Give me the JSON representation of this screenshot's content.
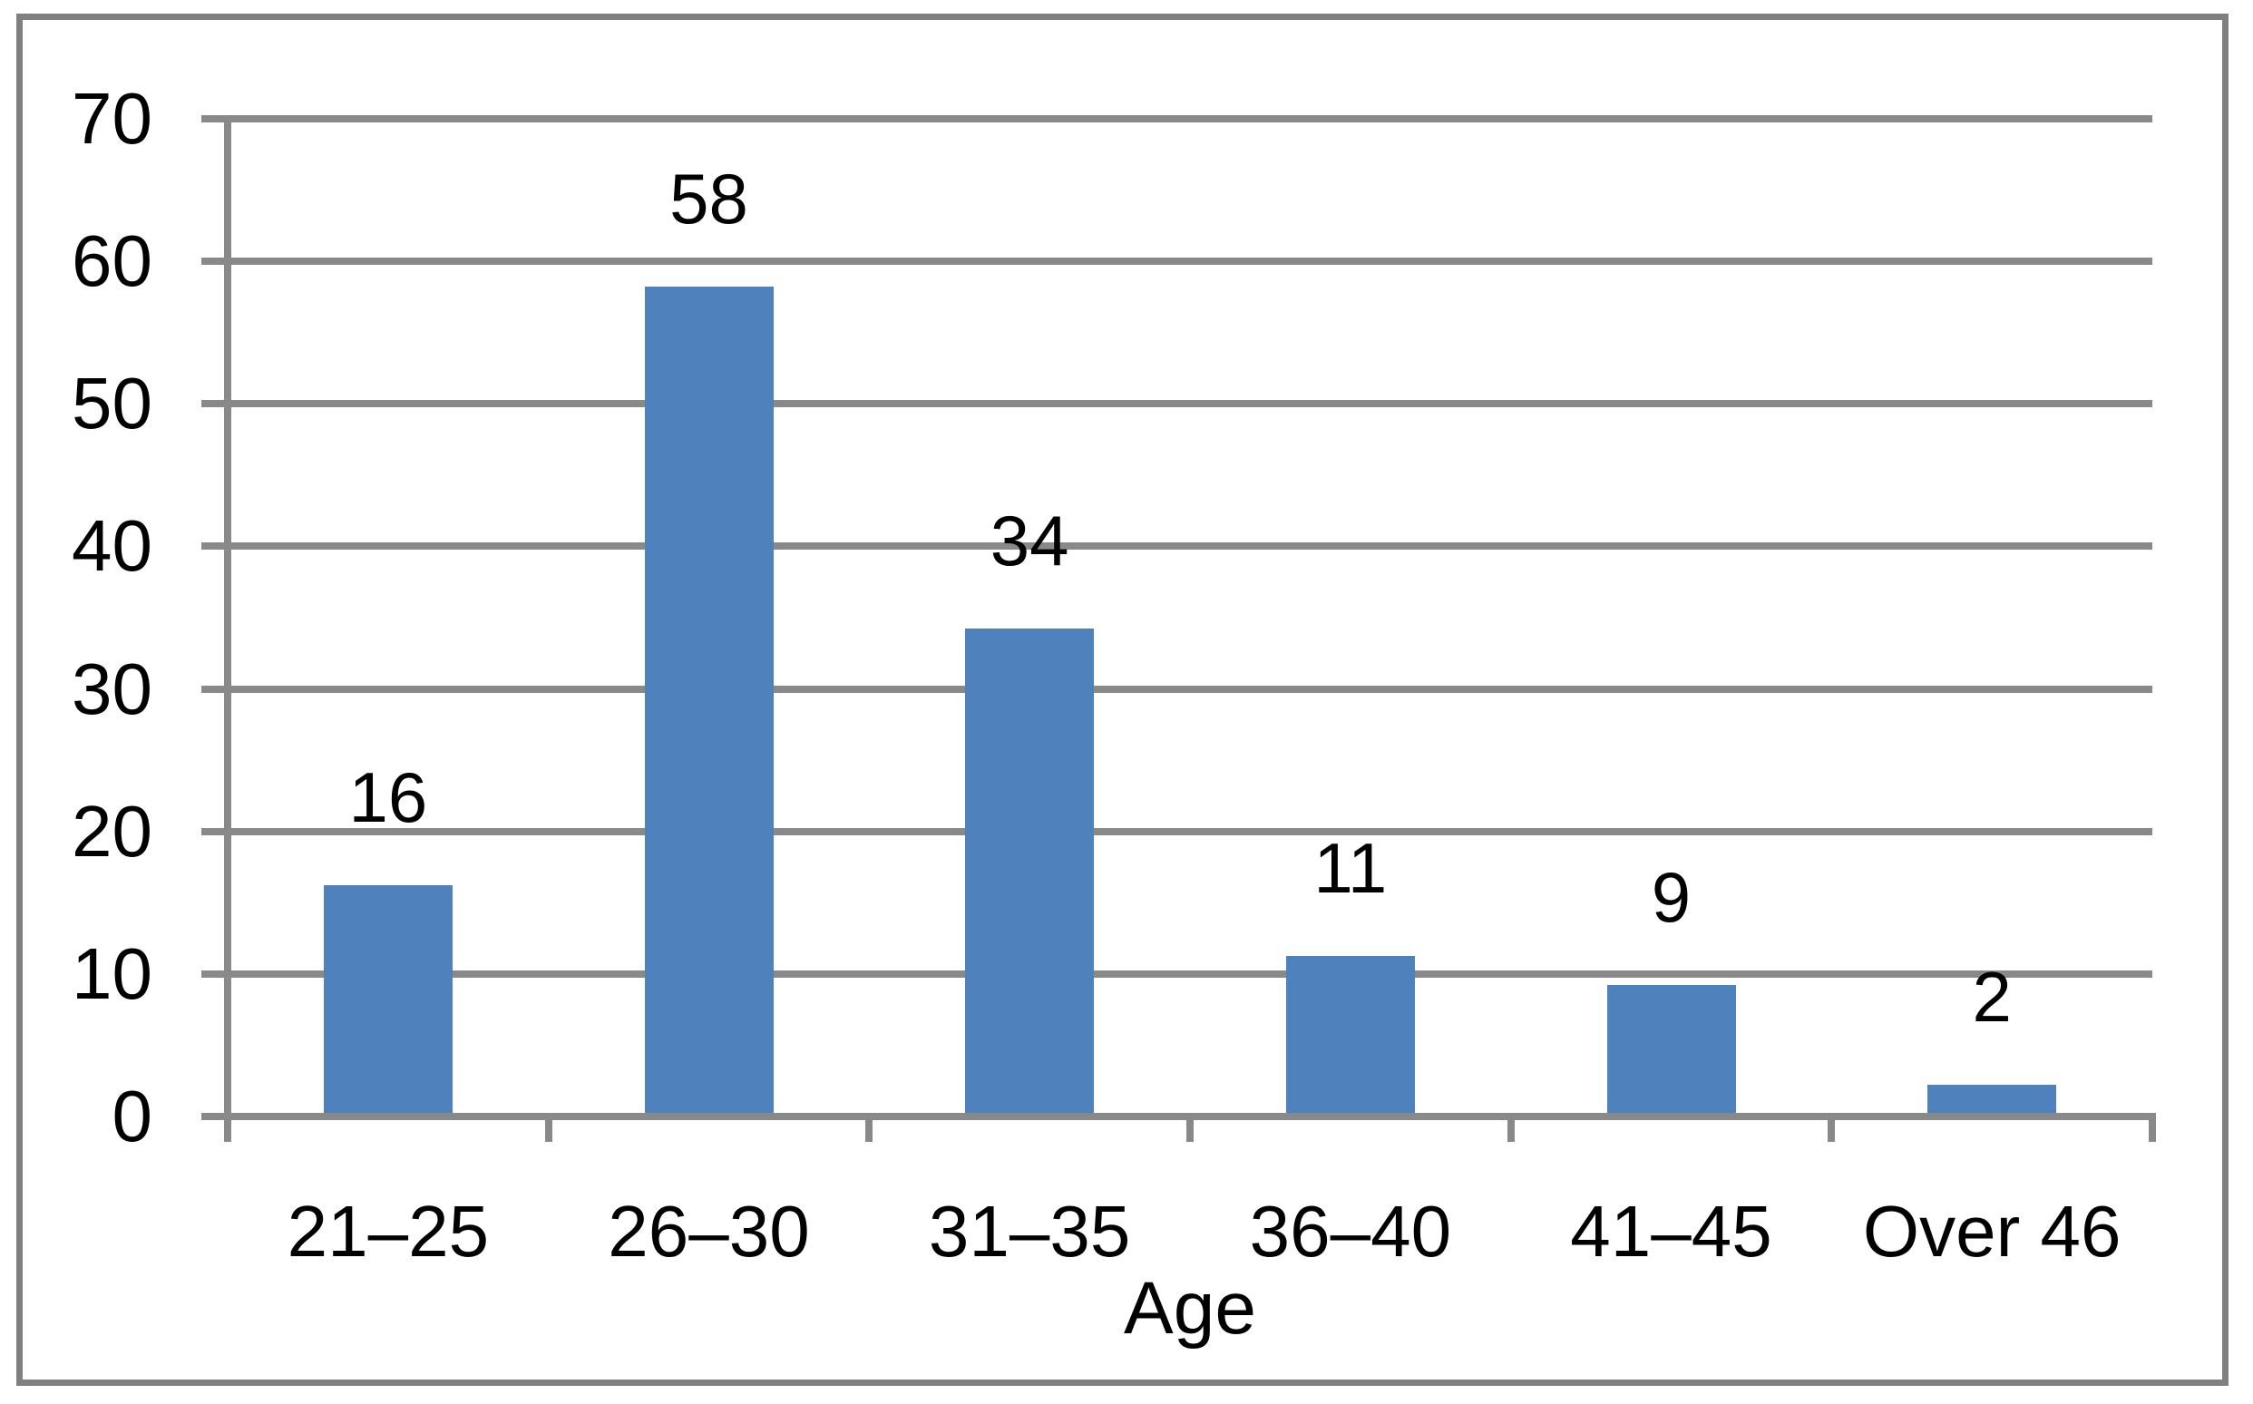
{
  "chart_data": {
    "type": "bar",
    "categories": [
      "21–25",
      "26–30",
      "31–35",
      "36–40",
      "41–45",
      "Over 46"
    ],
    "values": [
      16,
      58,
      34,
      11,
      9,
      2
    ],
    "data_labels": [
      "16",
      "58",
      "34",
      "11",
      "9",
      "2"
    ],
    "title": "",
    "xlabel": "Age",
    "ylabel": "",
    "ylim": [
      0,
      70
    ],
    "yticks": [
      0,
      10,
      20,
      30,
      40,
      50,
      60,
      70
    ],
    "grid": true,
    "legend_position": "none",
    "colors": {
      "bar": "#4F81BD",
      "gridline": "#898989",
      "axis": "#898989",
      "frame_border": "#808080",
      "text": "#000000",
      "background": "#FFFFFF"
    }
  }
}
